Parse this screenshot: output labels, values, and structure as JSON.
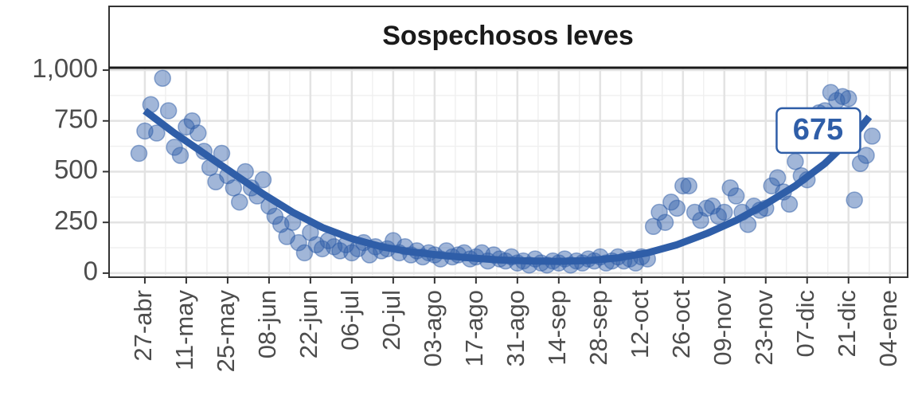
{
  "chart_data": {
    "type": "scatter",
    "title": "Sospechosos leves",
    "color": "#2f5ea8",
    "x": [
      -2,
      0,
      2,
      4,
      6,
      8,
      10,
      12,
      14,
      16,
      18,
      20,
      22,
      24,
      26,
      28,
      30,
      32,
      34,
      36,
      38,
      40,
      42,
      44,
      46,
      48,
      50,
      52,
      54,
      56,
      58,
      60,
      62,
      64,
      66,
      68,
      70,
      72,
      74,
      76,
      78,
      80,
      82,
      84,
      86,
      88,
      90,
      92,
      94,
      96,
      98,
      100,
      102,
      104,
      106,
      108,
      110,
      112,
      114,
      116,
      118,
      120,
      122,
      124,
      126,
      128,
      130,
      132,
      134,
      136,
      138,
      140,
      142,
      144,
      146,
      148,
      150,
      152,
      154,
      156,
      158,
      160,
      162,
      164,
      166,
      168,
      170,
      172,
      174,
      176,
      178,
      180,
      182,
      184,
      186,
      188,
      190,
      192,
      194,
      196,
      198,
      200,
      202,
      204,
      206,
      208,
      210,
      212,
      214,
      216,
      218,
      220,
      222,
      224,
      226,
      228,
      230,
      232,
      234,
      236,
      238,
      240,
      242,
      244,
      246
    ],
    "values": [
      590,
      700,
      830,
      690,
      960,
      800,
      620,
      580,
      720,
      750,
      690,
      600,
      520,
      450,
      590,
      480,
      420,
      350,
      500,
      420,
      380,
      460,
      330,
      280,
      240,
      180,
      250,
      150,
      100,
      200,
      140,
      120,
      160,
      130,
      110,
      140,
      100,
      120,
      150,
      90,
      130,
      110,
      120,
      160,
      100,
      130,
      90,
      110,
      80,
      100,
      90,
      70,
      110,
      80,
      90,
      100,
      70,
      80,
      100,
      60,
      90,
      70,
      60,
      80,
      50,
      60,
      40,
      70,
      50,
      40,
      60,
      50,
      70,
      40,
      60,
      50,
      70,
      60,
      80,
      50,
      60,
      80,
      60,
      70,
      50,
      80,
      70,
      230,
      300,
      250,
      350,
      320,
      430,
      430,
      300,
      260,
      320,
      330,
      280,
      300,
      420,
      380,
      300,
      240,
      330,
      310,
      320,
      430,
      470,
      400,
      340,
      550,
      480,
      460,
      700,
      790,
      800,
      890,
      850,
      870,
      860,
      360,
      540,
      580,
      675
    ],
    "trend": {
      "x": [
        0,
        10,
        20,
        30,
        40,
        50,
        60,
        70,
        80,
        90,
        100,
        110,
        120,
        130,
        140,
        150,
        160,
        170,
        180,
        190,
        200,
        210,
        220,
        230,
        240,
        245
      ],
      "values": [
        800,
        690,
        590,
        490,
        390,
        300,
        225,
        170,
        130,
        105,
        88,
        75,
        65,
        60,
        58,
        62,
        75,
        100,
        140,
        195,
        260,
        340,
        430,
        540,
        680,
        770
      ]
    },
    "annotation": {
      "x": 246,
      "value": 675
    },
    "xlim": [
      -12.1,
      258
    ],
    "ylim": [
      -20,
      1012
    ],
    "xticks": [
      {
        "value": 0,
        "label": "27-abr"
      },
      {
        "value": 14,
        "label": "11-may"
      },
      {
        "value": 28,
        "label": "25-may"
      },
      {
        "value": 42,
        "label": "08-jun"
      },
      {
        "value": 56,
        "label": "22-jun"
      },
      {
        "value": 70,
        "label": "06-jul"
      },
      {
        "value": 84,
        "label": "20-jul"
      },
      {
        "value": 98,
        "label": "03-ago"
      },
      {
        "value": 112,
        "label": "17-ago"
      },
      {
        "value": 126,
        "label": "31-ago"
      },
      {
        "value": 140,
        "label": "14-sep"
      },
      {
        "value": 154,
        "label": "28-sep"
      },
      {
        "value": 168,
        "label": "12-oct"
      },
      {
        "value": 182,
        "label": "26-oct"
      },
      {
        "value": 196,
        "label": "09-nov"
      },
      {
        "value": 210,
        "label": "23-nov"
      },
      {
        "value": 224,
        "label": "07-dic"
      },
      {
        "value": 238,
        "label": "21-dic"
      },
      {
        "value": 252,
        "label": "04-ene"
      }
    ],
    "yticks": [
      0,
      250,
      500,
      750,
      {
        "value": 1000,
        "label": "1,000"
      }
    ],
    "grid": true
  }
}
